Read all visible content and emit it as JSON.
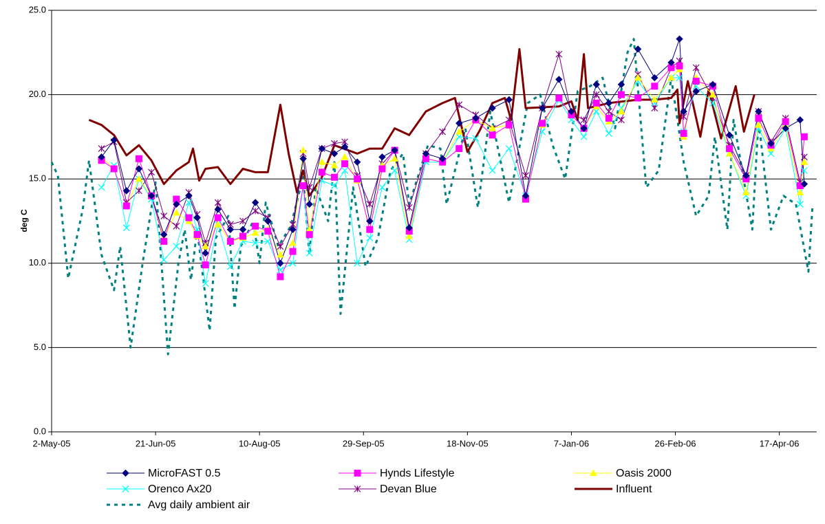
{
  "chart_data": {
    "type": "line",
    "y_label": "deg C",
    "xlim": [
      "2005-05-02",
      "2006-05-05"
    ],
    "xticks": [
      {
        "value": "2005-05-02",
        "label": "2-May-05"
      },
      {
        "value": "2005-06-21",
        "label": "21-Jun-05"
      },
      {
        "value": "2005-08-10",
        "label": "10-Aug-05"
      },
      {
        "value": "2005-09-29",
        "label": "29-Sep-05"
      },
      {
        "value": "2005-11-18",
        "label": "18-Nov-05"
      },
      {
        "value": "2006-01-07",
        "label": "7-Jan-06"
      },
      {
        "value": "2006-02-26",
        "label": "26-Feb-06"
      },
      {
        "value": "2006-04-17",
        "label": "17-Apr-06"
      }
    ],
    "ylim": [
      0,
      25
    ],
    "yticks": [
      {
        "value": 0,
        "label": "0.0"
      },
      {
        "value": 5,
        "label": "5.0"
      },
      {
        "value": 10,
        "label": "10.0"
      },
      {
        "value": 15,
        "label": "15.0"
      },
      {
        "value": 20,
        "label": "20.0"
      },
      {
        "value": 25,
        "label": "25.0"
      }
    ],
    "grid": true,
    "legend": "bottom",
    "series": [
      {
        "name": "MicroFAST 0.5",
        "color": "#000080",
        "marker": "diamond",
        "line_width": 1,
        "x": [
          "2005-05-26",
          "2005-06-01",
          "2005-06-07",
          "2005-06-13",
          "2005-06-19",
          "2005-06-25",
          "2005-07-01",
          "2005-07-07",
          "2005-07-11",
          "2005-07-15",
          "2005-07-21",
          "2005-07-27",
          "2005-08-02",
          "2005-08-08",
          "2005-08-14",
          "2005-08-20",
          "2005-08-26",
          "2005-08-31",
          "2005-09-03",
          "2005-09-09",
          "2005-09-15",
          "2005-09-20",
          "2005-09-26",
          "2005-10-02",
          "2005-10-08",
          "2005-10-14",
          "2005-10-21",
          "2005-10-29",
          "2005-11-06",
          "2005-11-14",
          "2005-11-22",
          "2005-11-30",
          "2005-12-08",
          "2005-12-16",
          "2005-12-24",
          "2006-01-01",
          "2006-01-07",
          "2006-01-13",
          "2006-01-19",
          "2006-01-25",
          "2006-01-31",
          "2006-02-08",
          "2006-02-16",
          "2006-02-24",
          "2006-02-28",
          "2006-03-02",
          "2006-03-08",
          "2006-03-16",
          "2006-03-24",
          "2006-04-01",
          "2006-04-07",
          "2006-04-13",
          "2006-04-20",
          "2006-04-27",
          "2006-04-29"
        ],
        "values": [
          16.3,
          17.3,
          14.3,
          15.6,
          14.0,
          11.7,
          13.5,
          14.0,
          12.7,
          10.6,
          13.2,
          12.0,
          12.0,
          13.6,
          12.5,
          10.0,
          12.0,
          16.2,
          13.5,
          16.8,
          16.5,
          16.9,
          16.0,
          12.5,
          16.3,
          16.7,
          12.1,
          16.5,
          16.2,
          18.3,
          18.6,
          19.2,
          19.7,
          14.0,
          19.2,
          20.9,
          19.0,
          18.0,
          20.6,
          19.5,
          20.6,
          22.7,
          21.0,
          21.9,
          23.3,
          19.0,
          20.2,
          20.6,
          17.6,
          15.2,
          19.0,
          17.1,
          18.0,
          18.5,
          14.7
        ]
      },
      {
        "name": "Hynds Lifestyle",
        "color": "#FF00FF",
        "marker": "square",
        "line_width": 1,
        "x": [
          "2005-05-26",
          "2005-06-01",
          "2005-06-07",
          "2005-06-13",
          "2005-06-19",
          "2005-06-25",
          "2005-07-01",
          "2005-07-07",
          "2005-07-11",
          "2005-07-15",
          "2005-07-21",
          "2005-07-27",
          "2005-08-02",
          "2005-08-08",
          "2005-08-14",
          "2005-08-20",
          "2005-08-26",
          "2005-08-31",
          "2005-09-03",
          "2005-09-09",
          "2005-09-15",
          "2005-09-20",
          "2005-09-26",
          "2005-10-02",
          "2005-10-08",
          "2005-10-14",
          "2005-10-21",
          "2005-10-29",
          "2005-11-06",
          "2005-11-14",
          "2005-11-22",
          "2005-11-30",
          "2005-12-08",
          "2005-12-16",
          "2005-12-24",
          "2006-01-01",
          "2006-01-07",
          "2006-01-13",
          "2006-01-19",
          "2006-01-25",
          "2006-01-31",
          "2006-02-08",
          "2006-02-16",
          "2006-02-24",
          "2006-02-28",
          "2006-03-02",
          "2006-03-08",
          "2006-03-16",
          "2006-03-24",
          "2006-04-01",
          "2006-04-07",
          "2006-04-13",
          "2006-04-20",
          "2006-04-27",
          "2006-04-29"
        ],
        "values": [
          16.1,
          15.6,
          13.4,
          16.2,
          14.0,
          11.3,
          13.8,
          12.7,
          11.7,
          9.9,
          12.7,
          11.3,
          11.6,
          12.2,
          11.9,
          9.2,
          10.7,
          14.6,
          11.7,
          15.4,
          15.1,
          15.9,
          15.0,
          12.0,
          15.6,
          16.7,
          11.9,
          16.2,
          16.0,
          16.8,
          18.5,
          17.6,
          18.2,
          13.8,
          18.3,
          19.8,
          18.8,
          18.0,
          19.5,
          18.6,
          20.0,
          19.8,
          20.5,
          21.6,
          21.7,
          17.7,
          20.8,
          20.5,
          16.8,
          15.0,
          18.6,
          17.0,
          18.4,
          14.6,
          17.5
        ]
      },
      {
        "name": "Oasis 2000",
        "color": "#FFFF00",
        "marker": "triangle",
        "line_width": 1,
        "x": [
          "2005-05-26",
          "2005-06-01",
          "2005-06-07",
          "2005-06-13",
          "2005-06-19",
          "2005-06-25",
          "2005-07-01",
          "2005-07-07",
          "2005-07-11",
          "2005-07-15",
          "2005-07-21",
          "2005-07-27",
          "2005-08-02",
          "2005-08-08",
          "2005-08-14",
          "2005-08-20",
          "2005-08-26",
          "2005-08-31",
          "2005-09-03",
          "2005-09-09",
          "2005-09-15",
          "2005-09-20",
          "2005-09-26",
          "2005-10-02",
          "2005-10-08",
          "2005-10-14",
          "2005-10-21",
          "2005-10-29",
          "2005-11-06",
          "2005-11-14",
          "2005-11-22",
          "2005-11-30",
          "2005-12-08",
          "2005-12-16",
          "2005-12-24",
          "2006-01-01",
          "2006-01-07",
          "2006-01-13",
          "2006-01-19",
          "2006-01-25",
          "2006-01-31",
          "2006-02-08",
          "2006-02-16",
          "2006-02-24",
          "2006-02-28",
          "2006-03-02",
          "2006-03-08",
          "2006-03-16",
          "2006-03-24",
          "2006-04-01",
          "2006-04-07",
          "2006-04-13",
          "2006-04-20",
          "2006-04-27",
          "2006-04-29"
        ],
        "values": [
          16.3,
          15.6,
          13.4,
          15.0,
          14.0,
          11.5,
          13.0,
          12.5,
          11.6,
          11.0,
          12.3,
          11.3,
          11.5,
          11.8,
          12.0,
          10.5,
          11.2,
          16.7,
          12.0,
          16.0,
          15.8,
          16.3,
          14.9,
          12.0,
          15.8,
          16.2,
          11.6,
          16.2,
          16.0,
          17.8,
          18.5,
          18.0,
          18.2,
          13.8,
          18.2,
          19.8,
          18.8,
          18.0,
          19.3,
          18.4,
          19.0,
          21.0,
          19.7,
          21.0,
          21.5,
          17.5,
          21.0,
          20.0,
          16.5,
          14.2,
          18.2,
          16.8,
          18.2,
          14.2,
          16.0
        ]
      },
      {
        "name": "Orenco Ax20",
        "color": "#00FFFF",
        "marker": "x",
        "line_width": 1,
        "x": [
          "2005-05-26",
          "2005-06-01",
          "2005-06-07",
          "2005-06-13",
          "2005-06-19",
          "2005-06-25",
          "2005-07-01",
          "2005-07-07",
          "2005-07-11",
          "2005-07-15",
          "2005-07-21",
          "2005-07-27",
          "2005-08-02",
          "2005-08-08",
          "2005-08-14",
          "2005-08-20",
          "2005-08-26",
          "2005-08-31",
          "2005-09-03",
          "2005-09-09",
          "2005-09-15",
          "2005-09-20",
          "2005-09-26",
          "2005-10-02",
          "2005-10-08",
          "2005-10-14",
          "2005-10-21",
          "2005-10-29",
          "2005-11-06",
          "2005-11-14",
          "2005-11-22",
          "2005-11-30",
          "2005-12-08",
          "2005-12-16",
          "2005-12-24",
          "2006-01-01",
          "2006-01-07",
          "2006-01-13",
          "2006-01-19",
          "2006-01-25",
          "2006-01-31",
          "2006-02-08",
          "2006-02-16",
          "2006-02-24",
          "2006-02-28",
          "2006-03-02",
          "2006-03-08",
          "2006-03-16",
          "2006-03-24",
          "2006-04-01",
          "2006-04-07",
          "2006-04-13",
          "2006-04-20",
          "2006-04-27",
          "2006-04-29"
        ],
        "values": [
          14.5,
          15.8,
          12.1,
          15.0,
          13.8,
          10.2,
          11.0,
          13.6,
          12.0,
          8.8,
          12.3,
          9.8,
          11.3,
          11.2,
          11.3,
          9.6,
          10.0,
          14.6,
          10.6,
          14.9,
          14.6,
          15.5,
          10.0,
          11.5,
          14.5,
          15.5,
          11.4,
          16.0,
          16.0,
          17.5,
          17.4,
          15.5,
          16.8,
          14.0,
          17.8,
          19.7,
          18.5,
          17.5,
          19.0,
          17.7,
          19.2,
          20.8,
          19.5,
          21.0,
          21.0,
          17.8,
          20.5,
          19.5,
          16.5,
          14.0,
          18.0,
          16.5,
          18.0,
          13.5,
          15.5
        ]
      },
      {
        "name": "Devan Blue",
        "color": "#800080",
        "marker": "asterisk",
        "line_width": 1,
        "x": [
          "2005-05-26",
          "2005-06-01",
          "2005-06-07",
          "2005-06-13",
          "2005-06-19",
          "2005-06-25",
          "2005-07-01",
          "2005-07-07",
          "2005-07-11",
          "2005-07-15",
          "2005-07-21",
          "2005-07-27",
          "2005-08-02",
          "2005-08-08",
          "2005-08-14",
          "2005-08-20",
          "2005-08-26",
          "2005-08-31",
          "2005-09-03",
          "2005-09-09",
          "2005-09-15",
          "2005-09-20",
          "2005-09-26",
          "2005-10-02",
          "2005-10-08",
          "2005-10-14",
          "2005-10-21",
          "2005-10-29",
          "2005-11-06",
          "2005-11-14",
          "2005-11-22",
          "2005-11-30",
          "2005-12-08",
          "2005-12-16",
          "2005-12-24",
          "2006-01-01",
          "2006-01-07",
          "2006-01-13",
          "2006-01-19",
          "2006-01-25",
          "2006-01-31",
          "2006-02-08",
          "2006-02-16",
          "2006-02-24",
          "2006-02-28",
          "2006-03-02",
          "2006-03-08",
          "2006-03-16",
          "2006-03-24",
          "2006-04-01",
          "2006-04-07",
          "2006-04-13",
          "2006-04-20",
          "2006-04-27",
          "2006-04-29"
        ],
        "values": [
          16.8,
          17.2,
          13.6,
          14.3,
          15.4,
          12.8,
          12.2,
          14.2,
          12.9,
          11.2,
          13.6,
          12.3,
          12.5,
          13.1,
          12.7,
          11.0,
          12.3,
          16.5,
          14.5,
          16.8,
          17.1,
          17.2,
          15.2,
          13.5,
          15.9,
          16.7,
          13.3,
          16.5,
          17.8,
          19.4,
          18.8,
          18.0,
          18.5,
          15.2,
          19.2,
          22.4,
          18.9,
          18.5,
          20.0,
          19.0,
          18.5,
          21.2,
          19.2,
          21.6,
          22.0,
          18.7,
          21.6,
          19.8,
          17.0,
          15.2,
          19.0,
          17.2,
          18.6,
          14.8,
          16.3
        ]
      },
      {
        "name": "Influent",
        "color": "#800000",
        "marker": "none",
        "line_width": 3,
        "x": [
          "2005-05-20",
          "2005-05-26",
          "2005-06-01",
          "2005-06-07",
          "2005-06-13",
          "2005-06-19",
          "2005-06-25",
          "2005-07-01",
          "2005-07-07",
          "2005-07-09",
          "2005-07-12",
          "2005-07-15",
          "2005-07-21",
          "2005-07-27",
          "2005-08-02",
          "2005-08-08",
          "2005-08-14",
          "2005-08-20",
          "2005-08-24",
          "2005-08-28",
          "2005-08-31",
          "2005-09-03",
          "2005-09-09",
          "2005-09-15",
          "2005-09-26",
          "2005-10-02",
          "2005-10-08",
          "2005-10-14",
          "2005-10-21",
          "2005-10-29",
          "2005-11-06",
          "2005-11-12",
          "2005-11-18",
          "2005-11-24",
          "2005-11-30",
          "2005-12-06",
          "2005-12-09",
          "2005-12-13",
          "2005-12-16",
          "2006-01-01",
          "2006-01-07",
          "2006-01-10",
          "2006-01-13",
          "2006-01-15",
          "2006-01-25",
          "2006-02-08",
          "2006-02-16",
          "2006-02-24",
          "2006-02-27",
          "2006-02-28",
          "2006-03-04",
          "2006-03-10",
          "2006-03-14",
          "2006-03-20",
          "2006-03-27",
          "2006-03-31",
          "2006-04-05"
        ],
        "values": [
          18.5,
          18.2,
          17.6,
          16.4,
          17.0,
          16.1,
          14.7,
          15.5,
          16.0,
          16.8,
          14.9,
          15.6,
          15.7,
          14.7,
          15.6,
          15.4,
          15.4,
          19.4,
          16.5,
          14.2,
          15.5,
          14.0,
          15.1,
          17.0,
          16.5,
          16.8,
          16.8,
          18.0,
          17.6,
          19.0,
          19.5,
          19.8,
          16.6,
          17.9,
          19.5,
          19.8,
          18.5,
          22.7,
          19.2,
          19.3,
          19.6,
          18.5,
          22.4,
          19.2,
          19.5,
          19.7,
          19.7,
          19.8,
          20.3,
          18.3,
          20.8,
          17.5,
          20.3,
          17.4,
          20.5,
          17.8,
          20.0
        ]
      },
      {
        "name": "Avg daily ambient air",
        "color": "#008080",
        "marker": "none",
        "line_width": 3,
        "line_style": "dashed",
        "x": [
          "2005-05-02",
          "2005-05-05",
          "2005-05-10",
          "2005-05-17",
          "2005-05-20",
          "2005-05-26",
          "2005-06-01",
          "2005-06-04",
          "2005-06-09",
          "2005-06-15",
          "2005-06-21",
          "2005-06-27",
          "2005-07-02",
          "2005-07-05",
          "2005-07-08",
          "2005-07-11",
          "2005-07-17",
          "2005-07-20",
          "2005-07-26",
          "2005-07-29",
          "2005-08-01",
          "2005-08-07",
          "2005-08-10",
          "2005-08-13",
          "2005-08-19",
          "2005-08-25",
          "2005-08-31",
          "2005-09-03",
          "2005-09-06",
          "2005-09-12",
          "2005-09-15",
          "2005-09-18",
          "2005-09-24",
          "2005-09-30",
          "2005-10-06",
          "2005-10-12",
          "2005-10-18",
          "2005-10-21",
          "2005-10-30",
          "2005-11-05",
          "2005-11-08",
          "2005-11-17",
          "2005-11-23",
          "2005-11-29",
          "2005-12-08",
          "2005-12-17",
          "2005-12-23",
          "2005-12-29",
          "2006-01-04",
          "2006-01-10",
          "2006-01-16",
          "2006-01-22",
          "2006-01-28",
          "2006-02-03",
          "2006-02-06",
          "2006-02-12",
          "2006-02-18",
          "2006-02-24",
          "2006-03-02",
          "2006-03-08",
          "2006-03-14",
          "2006-03-17",
          "2006-03-23",
          "2006-03-26",
          "2006-04-04",
          "2006-04-07",
          "2006-04-13",
          "2006-04-19",
          "2006-04-25",
          "2006-05-01",
          "2006-05-03"
        ],
        "values": [
          16.0,
          15.2,
          9.1,
          13.2,
          16.1,
          10.5,
          8.4,
          11.0,
          5.0,
          10.2,
          14.8,
          4.6,
          10.0,
          12.0,
          9.0,
          12.0,
          6.0,
          11.5,
          12.8,
          7.3,
          11.0,
          12.5,
          10.0,
          13.6,
          11.0,
          12.2,
          15.1,
          10.5,
          14.5,
          12.5,
          16.0,
          7.0,
          14.5,
          9.8,
          11.5,
          15.5,
          16.5,
          13.5,
          17.0,
          16.8,
          13.5,
          18.0,
          13.3,
          19.0,
          13.6,
          19.5,
          20.0,
          17.0,
          15.0,
          20.2,
          20.5,
          21.0,
          18.0,
          22.5,
          23.3,
          14.5,
          15.5,
          21.0,
          16.0,
          12.8,
          14.0,
          17.5,
          12.0,
          18.5,
          12.0,
          18.5,
          12.0,
          14.0,
          13.5,
          9.5,
          13.5
        ]
      }
    ]
  }
}
